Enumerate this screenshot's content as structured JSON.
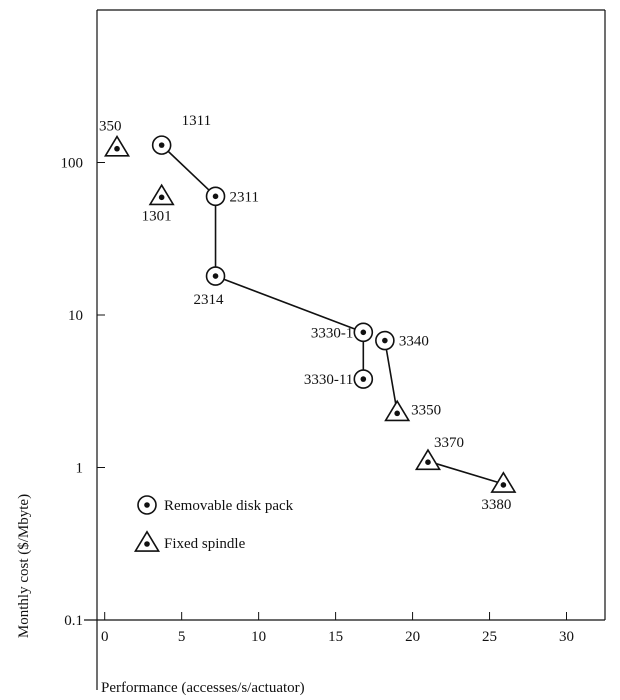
{
  "chart_data": {
    "type": "scatter",
    "xlabel": "Performance (accesses/s/actuator)",
    "ylabel": "Monthly cost ($/Mbyte)",
    "x_scale": "linear",
    "y_scale": "log",
    "xlim": [
      -0.5,
      32.5
    ],
    "ylim": [
      0.1,
      1000
    ],
    "x_ticks": [
      0,
      5,
      10,
      15,
      20,
      25,
      30
    ],
    "x_tick_labels": [
      "0",
      "5",
      "10",
      "15",
      "20",
      "25",
      "30"
    ],
    "y_ticks": [
      0.1,
      1,
      10,
      100
    ],
    "y_tick_labels": [
      "0.1",
      "1",
      "10",
      "100"
    ],
    "grid": false,
    "legend_position": "lower-left",
    "series": [
      {
        "name": "Removable disk pack",
        "marker": "circle-dot",
        "points": [
          {
            "label": "1311",
            "x": 3.7,
            "y": 130
          },
          {
            "label": "2311",
            "x": 7.2,
            "y": 60
          },
          {
            "label": "2314",
            "x": 7.2,
            "y": 18
          },
          {
            "label": "3330-1",
            "x": 16.8,
            "y": 7.7
          },
          {
            "label": "3330-11",
            "x": 16.8,
            "y": 3.8
          },
          {
            "label": "3340",
            "x": 18.2,
            "y": 6.8
          }
        ]
      },
      {
        "name": "Fixed spindle",
        "marker": "triangle-dot",
        "points": [
          {
            "label": "350",
            "x": 0.8,
            "y": 125
          },
          {
            "label": "1301",
            "x": 3.7,
            "y": 60
          },
          {
            "label": "3350",
            "x": 19,
            "y": 2.3
          },
          {
            "label": "3370",
            "x": 21,
            "y": 1.1
          },
          {
            "label": "3380",
            "x": 25.9,
            "y": 0.78
          }
        ]
      }
    ],
    "connections": [
      [
        "1311",
        "2311"
      ],
      [
        "2311",
        "2314"
      ],
      [
        "2314",
        "3330-1"
      ],
      [
        "3330-1",
        "3330-11"
      ],
      [
        "3340",
        "3350"
      ],
      [
        "3370",
        "3380"
      ]
    ]
  }
}
